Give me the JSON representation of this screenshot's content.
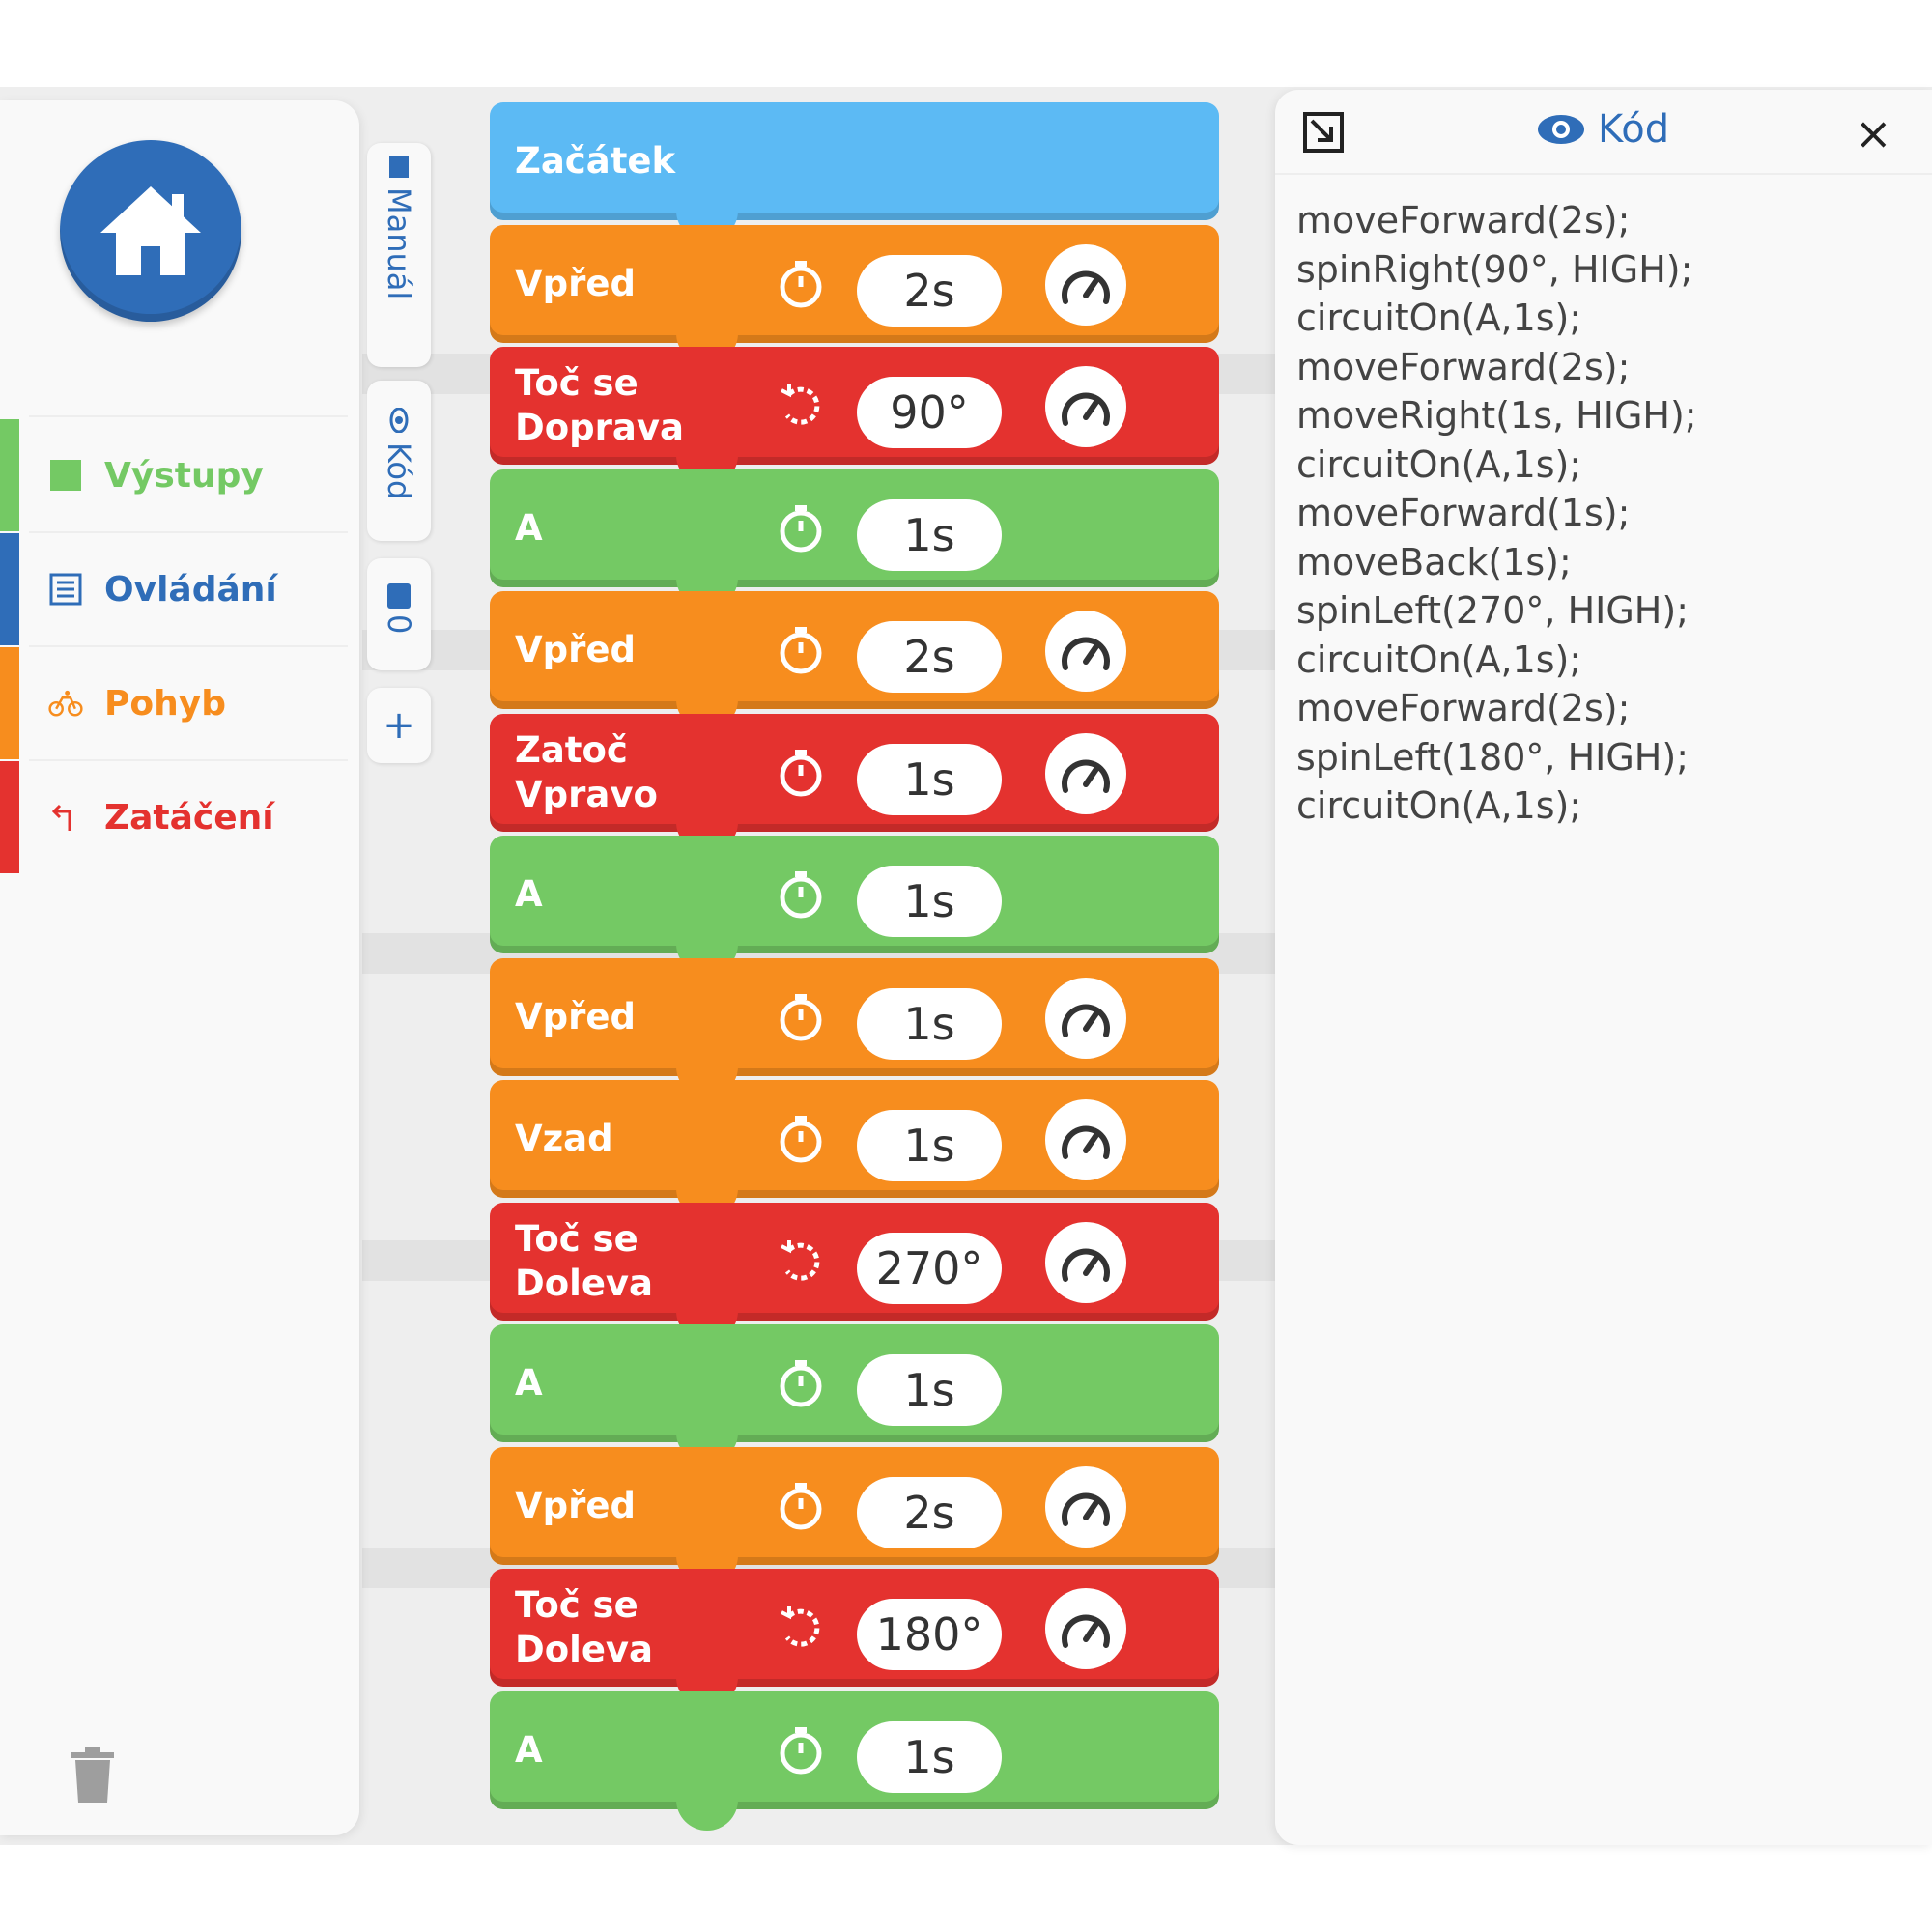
{
  "sidebar": {
    "categories": [
      {
        "label": "Výstupy",
        "color": "#74c964",
        "icon": "square-icon"
      },
      {
        "label": "Ovládání",
        "color": "#2f6db8",
        "icon": "list-icon"
      },
      {
        "label": "Pohyb",
        "color": "#f78d1e",
        "icon": "bicycle-icon"
      },
      {
        "label": "Zatáčení",
        "color": "#e4322f",
        "icon": "turn-left-icon"
      }
    ]
  },
  "tabs": {
    "manual": "Manuál",
    "code": "Kód",
    "zero": "0",
    "add": "+"
  },
  "blocks": [
    {
      "name": "Začátek",
      "type": "start"
    },
    {
      "name": "Vpřed",
      "type": "move",
      "value": "2s"
    },
    {
      "name": "Toč se\nDoprava",
      "type": "spin",
      "value": "90°"
    },
    {
      "name": "A",
      "type": "circuit",
      "value": "1s"
    },
    {
      "name": "Vpřed",
      "type": "move",
      "value": "2s"
    },
    {
      "name": "Zatoč\nVpravo",
      "type": "turn",
      "value": "1s"
    },
    {
      "name": "A",
      "type": "circuit",
      "value": "1s"
    },
    {
      "name": "Vpřed",
      "type": "move",
      "value": "1s"
    },
    {
      "name": "Vzad",
      "type": "move",
      "value": "1s"
    },
    {
      "name": "Toč se\nDoleva",
      "type": "spin",
      "value": "270°"
    },
    {
      "name": "A",
      "type": "circuit",
      "value": "1s"
    },
    {
      "name": "Vpřed",
      "type": "move",
      "value": "2s"
    },
    {
      "name": "Toč se\nDoleva",
      "type": "spin",
      "value": "180°"
    },
    {
      "name": "A",
      "type": "circuit",
      "value": "1s"
    }
  ],
  "code_panel": {
    "title": "Kód",
    "close": "×",
    "lines": [
      "moveForward(2s);",
      "spinRight(90°, HIGH);",
      "circuitOn(A,1s);",
      "moveForward(2s);",
      "moveRight(1s, HIGH);",
      "circuitOn(A,1s);",
      "moveForward(1s);",
      "moveBack(1s);",
      "spinLeft(270°, HIGH);",
      "circuitOn(A,1s);",
      "moveForward(2s);",
      "spinLeft(180°, HIGH);",
      "circuitOn(A,1s);"
    ]
  },
  "colors": {
    "move": "#f78d1e",
    "spin": "#e4322f",
    "turn": "#e4322f",
    "circuit": "#74c964",
    "start": "#5cbaf4",
    "accent": "#2f6db8"
  }
}
